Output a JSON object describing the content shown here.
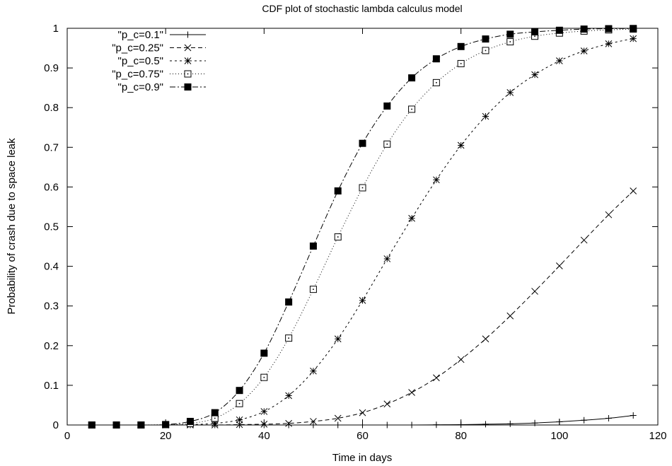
{
  "chart_data": {
    "type": "line",
    "title": "CDF plot of stochastic lambda calculus model",
    "xlabel": "Time in days",
    "ylabel": "Probability of crash due to space leak",
    "xlim": [
      0,
      120
    ],
    "ylim": [
      0,
      1
    ],
    "xticks": [
      0,
      20,
      40,
      60,
      80,
      100,
      120
    ],
    "xtick_labels": [
      "0",
      "20",
      "40",
      "60",
      "80",
      "100",
      "120"
    ],
    "yticks": [
      0,
      0.1,
      0.2,
      0.3,
      0.4,
      0.5,
      0.6,
      0.7,
      0.8,
      0.9,
      1
    ],
    "ytick_labels": [
      "0",
      "0.1",
      "0.2",
      "0.3",
      "0.4",
      "0.5",
      "0.6",
      "0.7",
      "0.8",
      "0.9",
      "1"
    ],
    "grid": false,
    "legend_position": "top-left",
    "x": [
      5,
      10,
      15,
      20,
      25,
      30,
      35,
      40,
      45,
      50,
      55,
      60,
      65,
      70,
      75,
      80,
      85,
      90,
      95,
      100,
      105,
      110,
      115
    ],
    "series": [
      {
        "name": "\"p_c=0.1\"",
        "marker": "plus",
        "dash": "",
        "values": [
          0,
          0,
          0,
          0,
          0,
          0,
          0,
          0,
          0,
          0,
          0,
          0,
          0,
          0,
          0.0005,
          0.001,
          0.002,
          0.003,
          0.005,
          0.008,
          0.012,
          0.017,
          0.024
        ]
      },
      {
        "name": "\"p_c=0.25\"",
        "marker": "cross",
        "dash": "6,4",
        "values": [
          0,
          0,
          0,
          0,
          0,
          0,
          0.001,
          0.002,
          0.004,
          0.009,
          0.017,
          0.031,
          0.053,
          0.082,
          0.119,
          0.165,
          0.217,
          0.275,
          0.337,
          0.401,
          0.466,
          0.53,
          0.59
        ]
      },
      {
        "name": "\"p_c=0.5\"",
        "marker": "star",
        "dash": "3,4",
        "values": [
          0,
          0,
          0,
          0,
          0.001,
          0.004,
          0.013,
          0.034,
          0.074,
          0.136,
          0.217,
          0.314,
          0.419,
          0.521,
          0.618,
          0.705,
          0.778,
          0.838,
          0.883,
          0.918,
          0.943,
          0.961,
          0.974
        ]
      },
      {
        "name": "\"p_c=0.75\"",
        "marker": "open-square",
        "dash": "1,3",
        "values": [
          0,
          0,
          0,
          0.001,
          0.004,
          0.017,
          0.054,
          0.12,
          0.219,
          0.342,
          0.474,
          0.598,
          0.708,
          0.796,
          0.863,
          0.911,
          0.944,
          0.966,
          0.98,
          0.988,
          0.993,
          0.996,
          0.998
        ]
      },
      {
        "name": "\"p_c=0.9\"",
        "marker": "filled-square",
        "dash": "8,3,2,3",
        "values": [
          0,
          0,
          0,
          0.001,
          0.009,
          0.031,
          0.087,
          0.181,
          0.31,
          0.451,
          0.59,
          0.71,
          0.804,
          0.875,
          0.923,
          0.954,
          0.973,
          0.985,
          0.991,
          0.995,
          0.998,
          0.999,
          0.9995
        ]
      }
    ]
  }
}
